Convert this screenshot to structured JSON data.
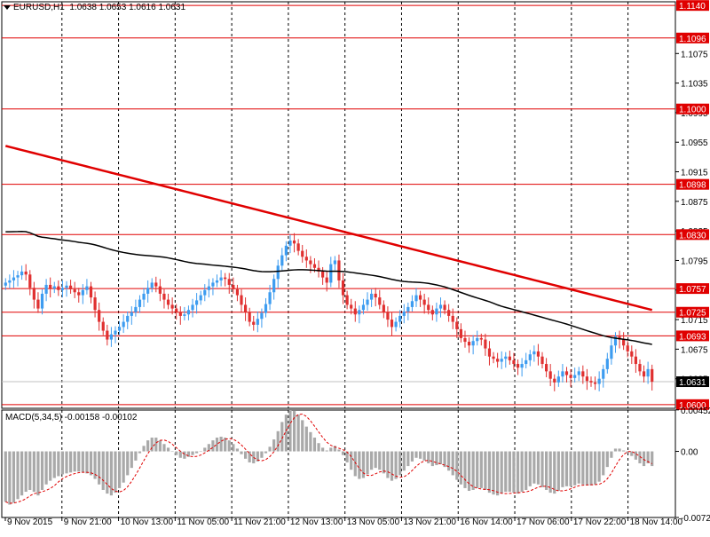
{
  "header": {
    "symbol": "EURUSD,H1",
    "ohlc": "1.0638 1.0653 1.0616 1.0631"
  },
  "macd_label": "MACD(5,34,5) -0.00158 -0.00102",
  "colors": {
    "background": "#ffffff",
    "level_line": "#e00000",
    "level_label_bg": "#e00000",
    "bull_candle": "#3d9cf0",
    "bear_candle": "#e03030",
    "ma_slow": "#e00000",
    "ma_fast": "#000000",
    "histogram": "#a9a9a9",
    "signal": "#e00000",
    "current_price_bg": "#000000"
  },
  "chart_data": [
    {
      "type": "candlestick",
      "symbol": "EURUSD",
      "timeframe": "H1",
      "ylim": [
        1.0595,
        1.1145
      ],
      "y_ticks": [
        "1.1075",
        "1.1035",
        "1.0995",
        "1.0955",
        "1.0915",
        "1.0875",
        "1.0835",
        "1.0795",
        "1.0755",
        "1.0715",
        "1.0675",
        "1.0635"
      ],
      "x_ticks": [
        "9 Nov 2015",
        "9 Nov 21:00",
        "10 Nov 13:00",
        "11 Nov 05:00",
        "11 Nov 21:00",
        "12 Nov 13:00",
        "13 Nov 05:00",
        "13 Nov 21:00",
        "16 Nov 14:00",
        "17 Nov 06:00",
        "17 Nov 22:00",
        "18 Nov 14:00"
      ],
      "horizontal_levels": [
        "1.1140",
        "1.1096",
        "1.1000",
        "1.0898",
        "1.0830",
        "1.0757",
        "1.0725",
        "1.0693",
        "1.0600"
      ],
      "current_price": "1.0631",
      "close": [
        1.0765,
        1.0768,
        1.0772,
        1.0775,
        1.078,
        1.0776,
        1.0758,
        1.0742,
        1.073,
        1.075,
        1.0762,
        1.0757,
        1.076,
        1.0755,
        1.0758,
        1.0761,
        1.0756,
        1.0752,
        1.0748,
        1.0755,
        1.076,
        1.0745,
        1.0728,
        1.0712,
        1.07,
        1.0688,
        1.0695,
        1.07,
        1.0705,
        1.0712,
        1.072,
        1.0725,
        1.0732,
        1.0742,
        1.075,
        1.0758,
        1.0765,
        1.076,
        1.075,
        1.0742,
        1.0735,
        1.073,
        1.0725,
        1.072,
        1.0722,
        1.0728,
        1.0735,
        1.0741,
        1.0748,
        1.0755,
        1.076,
        1.0765,
        1.0768,
        1.0772,
        1.077,
        1.0762,
        1.0756,
        1.0748,
        1.0735,
        1.0725,
        1.0712,
        1.0708,
        1.0716,
        1.0724,
        1.0736,
        1.0752,
        1.077,
        1.0788,
        1.0802,
        1.0815,
        1.0822,
        1.0818,
        1.0808,
        1.08,
        1.0795,
        1.079,
        1.0785,
        1.078,
        1.0772,
        1.0765,
        1.079,
        1.0795,
        1.0768,
        1.0748,
        1.0735,
        1.073,
        1.0722,
        1.0728,
        1.0735,
        1.0742,
        1.075,
        1.0745,
        1.0735,
        1.0725,
        1.0715,
        1.0705,
        1.0712,
        1.072,
        1.0726,
        1.0732,
        1.074,
        1.0748,
        1.0742,
        1.0735,
        1.0728,
        1.0722,
        1.073,
        1.0735,
        1.0728,
        1.072,
        1.0712,
        1.0702,
        1.069,
        1.0685,
        1.068,
        1.0686,
        1.069,
        1.0688,
        1.0676,
        1.0665,
        1.0662,
        1.0658,
        1.0662,
        1.0665,
        1.066,
        1.0655,
        1.065,
        1.0655,
        1.066,
        1.0668,
        1.0672,
        1.0665,
        1.0655,
        1.0645,
        1.0635,
        1.063,
        1.0638,
        1.0645,
        1.064,
        1.0636,
        1.064,
        1.0645,
        1.0638,
        1.0632,
        1.063,
        1.0628,
        1.0635,
        1.0648,
        1.0662,
        1.068,
        1.0692,
        1.0688,
        1.068,
        1.0672,
        1.0665,
        1.0655,
        1.0645,
        1.0638,
        1.0648,
        1.0631
      ]
    },
    {
      "type": "macd",
      "name": "MACD(5,34,5)",
      "ylim": [
        -0.0072,
        0.0045
      ],
      "y_ticks": [
        "0.00452",
        "0.00",
        "-0.0072"
      ],
      "histogram": [
        -0.0055,
        -0.0058,
        -0.0056,
        -0.0052,
        -0.0048,
        -0.0044,
        -0.0042,
        -0.0044,
        -0.0048,
        -0.0042,
        -0.0036,
        -0.0032,
        -0.0029,
        -0.0027,
        -0.0025,
        -0.0024,
        -0.0023,
        -0.0022,
        -0.0022,
        -0.0023,
        -0.0024,
        -0.0026,
        -0.003,
        -0.0036,
        -0.0042,
        -0.0046,
        -0.0048,
        -0.0045,
        -0.004,
        -0.0034,
        -0.0026,
        -0.0018,
        -0.001,
        -0.0002,
        0.0006,
        0.0012,
        0.0015,
        0.0015,
        0.0012,
        0.0008,
        0.0004,
        0.0,
        -0.0004,
        -0.0007,
        -0.0008,
        -0.0006,
        -0.0004,
        -0.0002,
        0.0,
        0.0004,
        0.0008,
        0.0012,
        0.0015,
        0.0016,
        0.0015,
        0.0012,
        0.0008,
        0.0003,
        -0.0003,
        -0.0008,
        -0.0012,
        -0.0013,
        -0.0011,
        -0.0007,
        -0.0002,
        0.0005,
        0.0013,
        0.0022,
        0.0032,
        0.004,
        0.0045,
        0.0044,
        0.004,
        0.0034,
        0.0027,
        0.0021,
        0.0015,
        0.0009,
        0.0004,
        0.0001,
        0.0004,
        0.0006,
        0.0002,
        -0.0004,
        -0.0012,
        -0.002,
        -0.0027,
        -0.003,
        -0.0029,
        -0.0025,
        -0.002,
        -0.0018,
        -0.002,
        -0.0024,
        -0.0029,
        -0.0032,
        -0.003,
        -0.0026,
        -0.0021,
        -0.0016,
        -0.0011,
        -0.0007,
        -0.0008,
        -0.001,
        -0.0013,
        -0.0016,
        -0.0015,
        -0.0014,
        -0.0017,
        -0.0021,
        -0.0026,
        -0.0031,
        -0.0036,
        -0.004,
        -0.0043,
        -0.0042,
        -0.004,
        -0.004,
        -0.0042,
        -0.0045,
        -0.0047,
        -0.0048,
        -0.0046,
        -0.0044,
        -0.0044,
        -0.0045,
        -0.0046,
        -0.0044,
        -0.0042,
        -0.0038,
        -0.0035,
        -0.0036,
        -0.0039,
        -0.0042,
        -0.0045,
        -0.0046,
        -0.0043,
        -0.0039,
        -0.0038,
        -0.0038,
        -0.0037,
        -0.0035,
        -0.0036,
        -0.0037,
        -0.0037,
        -0.0036,
        -0.0033,
        -0.0026,
        -0.0017,
        -0.0007,
        0.0003,
        0.0003,
        0.0001,
        -0.0002,
        -0.0005,
        -0.0009,
        -0.0013,
        -0.0016,
        -0.0013,
        -0.0016
      ]
    }
  ]
}
